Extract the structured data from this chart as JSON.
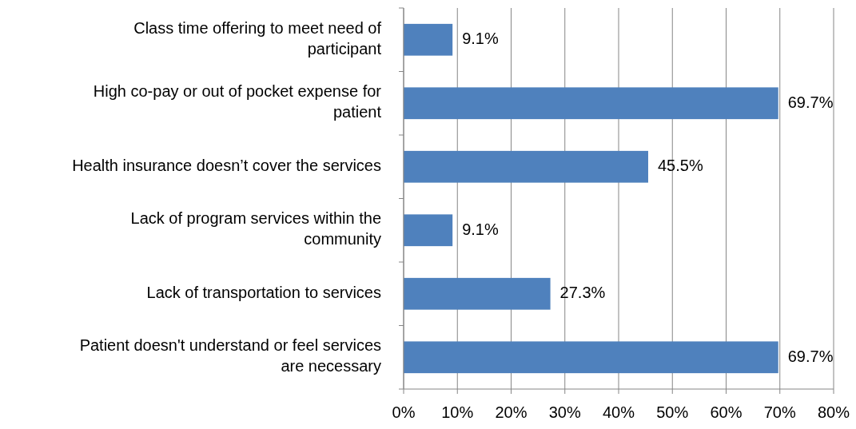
{
  "chart_data": {
    "type": "bar",
    "orientation": "horizontal",
    "categories": [
      "Class time offering to meet need of participant",
      "High co-pay or out of pocket expense for patient",
      "Health insurance doesn’t cover the services",
      "Lack of program services within the community",
      "Lack of transportation to services",
      "Patient doesn't understand or feel services are necessary"
    ],
    "values": [
      9.1,
      69.7,
      45.5,
      9.1,
      27.3,
      69.7
    ],
    "value_labels": [
      "9.1%",
      "69.7%",
      "45.5%",
      "9.1%",
      "27.3%",
      "69.7%"
    ],
    "color": "#4f81bd",
    "xlim": [
      0,
      80
    ],
    "xticks": [
      {
        "value": 0,
        "label": "0%"
      },
      {
        "value": 10,
        "label": "10%"
      },
      {
        "value": 20,
        "label": "20%"
      },
      {
        "value": 30,
        "label": "30%"
      },
      {
        "value": 40,
        "label": "40%"
      },
      {
        "value": 50,
        "label": "50%"
      },
      {
        "value": 60,
        "label": "60%"
      },
      {
        "value": 70,
        "label": "70%"
      },
      {
        "value": 80,
        "label": "80%"
      }
    ],
    "grid": "x"
  }
}
